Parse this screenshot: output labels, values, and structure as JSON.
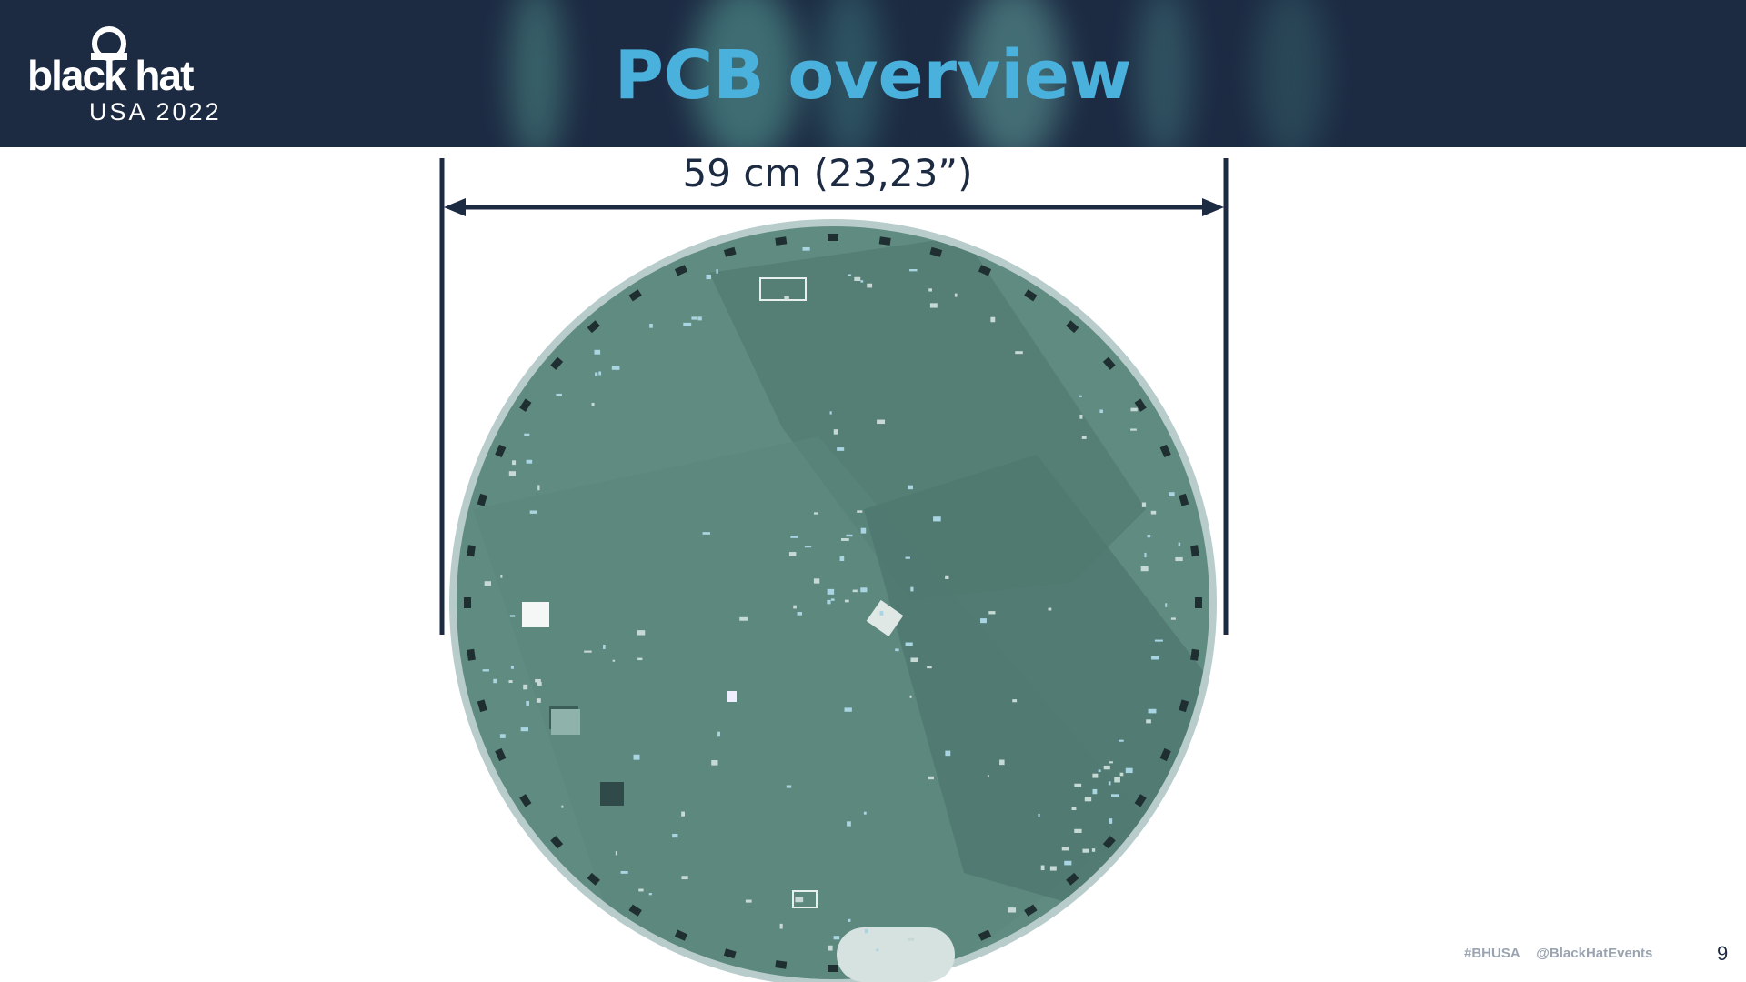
{
  "header": {
    "logo": {
      "name": "black hat",
      "event": "USA 2022"
    },
    "title": "PCB overview"
  },
  "dimension": {
    "label": "59 cm (23,23”)"
  },
  "footer": {
    "hashtag": "#BHUSA",
    "handle": "@BlackHatEvents",
    "page": "9"
  }
}
